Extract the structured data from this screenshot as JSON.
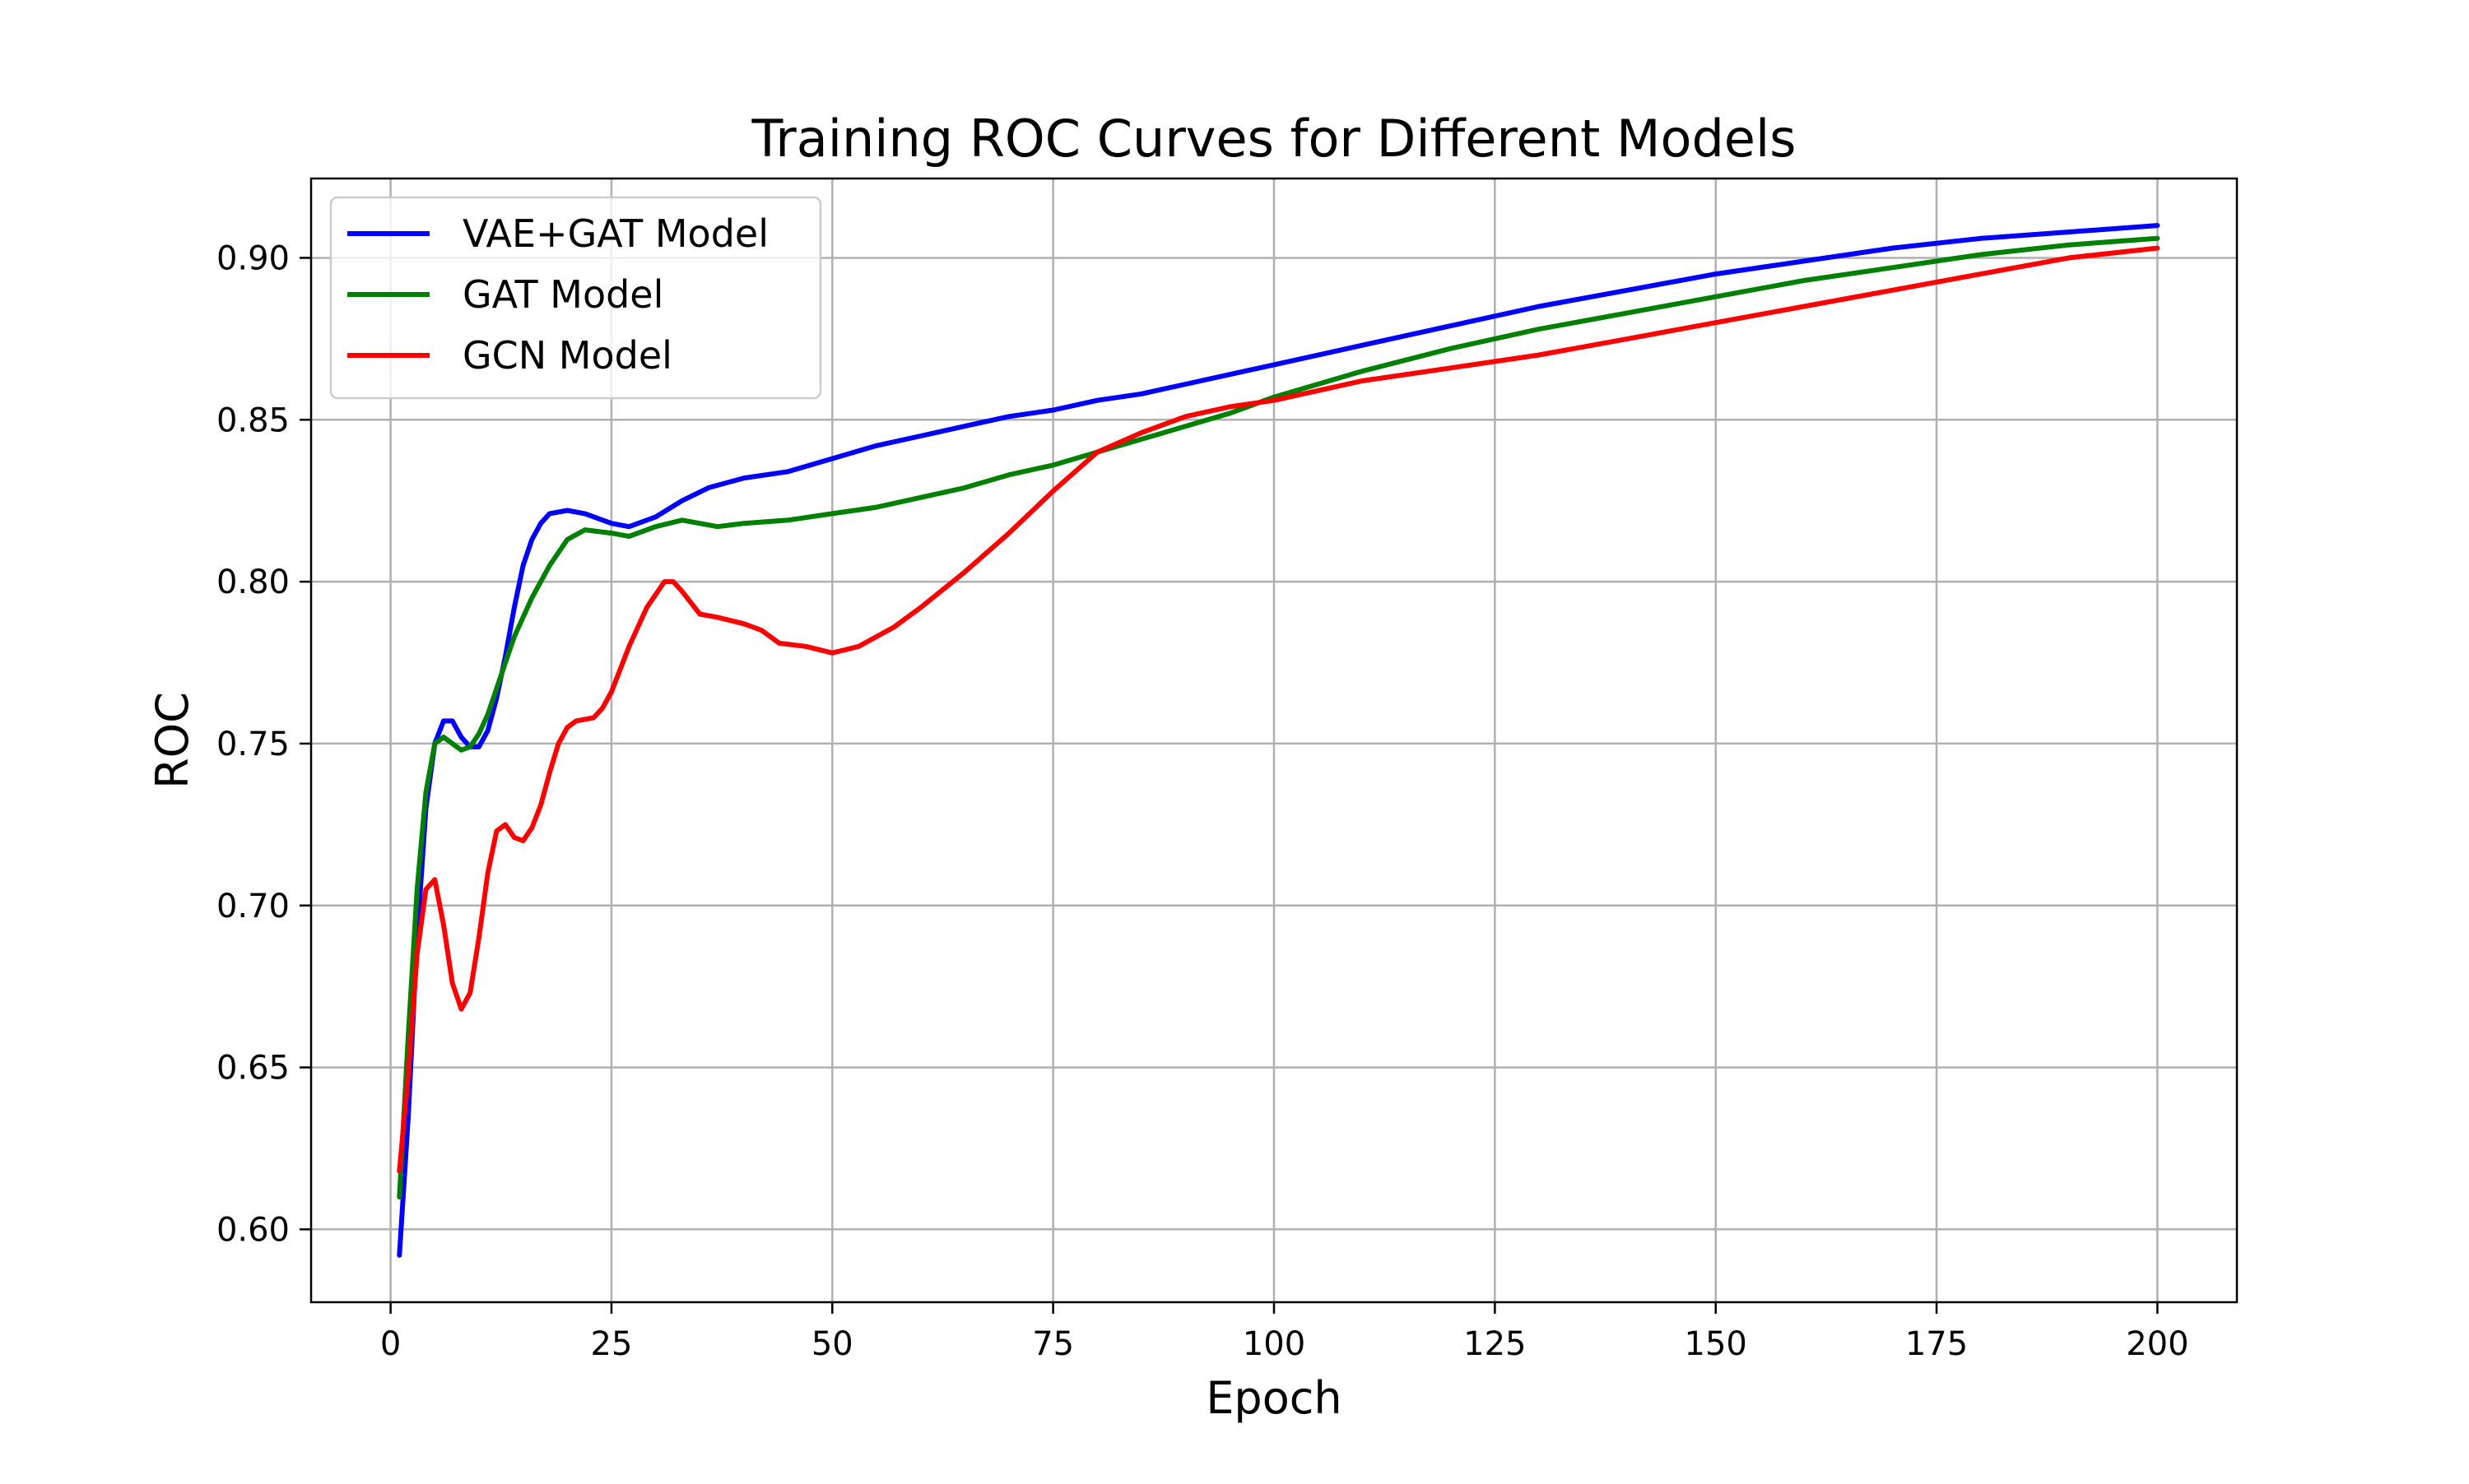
{
  "chart_data": {
    "type": "line",
    "title": "Training ROC Curves for Different Models",
    "xlabel": "Epoch",
    "ylabel": "ROC",
    "xlim": [
      -9,
      209
    ],
    "ylim": [
      0.5775,
      0.9245
    ],
    "grid": true,
    "legend_position": "top-left",
    "x_ticks": [
      0,
      25,
      50,
      75,
      100,
      125,
      150,
      175,
      200
    ],
    "y_ticks": [
      0.6,
      0.65,
      0.7,
      0.75,
      0.8,
      0.85,
      0.9
    ],
    "series": [
      {
        "name": "VAE+GAT Model",
        "color": "#0000ff",
        "points": [
          [
            1,
            0.592
          ],
          [
            2,
            0.635
          ],
          [
            3,
            0.69
          ],
          [
            4,
            0.73
          ],
          [
            5,
            0.75
          ],
          [
            6,
            0.757
          ],
          [
            7,
            0.757
          ],
          [
            8,
            0.752
          ],
          [
            9,
            0.749
          ],
          [
            10,
            0.749
          ],
          [
            11,
            0.754
          ],
          [
            12,
            0.764
          ],
          [
            13,
            0.777
          ],
          [
            14,
            0.792
          ],
          [
            15,
            0.805
          ],
          [
            16,
            0.813
          ],
          [
            17,
            0.818
          ],
          [
            18,
            0.821
          ],
          [
            20,
            0.822
          ],
          [
            22,
            0.821
          ],
          [
            25,
            0.818
          ],
          [
            27,
            0.817
          ],
          [
            30,
            0.82
          ],
          [
            33,
            0.825
          ],
          [
            36,
            0.829
          ],
          [
            40,
            0.832
          ],
          [
            45,
            0.834
          ],
          [
            50,
            0.838
          ],
          [
            55,
            0.842
          ],
          [
            60,
            0.845
          ],
          [
            65,
            0.848
          ],
          [
            70,
            0.851
          ],
          [
            75,
            0.853
          ],
          [
            80,
            0.856
          ],
          [
            85,
            0.858
          ],
          [
            90,
            0.861
          ],
          [
            95,
            0.864
          ],
          [
            100,
            0.867
          ],
          [
            110,
            0.873
          ],
          [
            120,
            0.879
          ],
          [
            130,
            0.885
          ],
          [
            140,
            0.89
          ],
          [
            150,
            0.895
          ],
          [
            160,
            0.899
          ],
          [
            170,
            0.903
          ],
          [
            180,
            0.906
          ],
          [
            190,
            0.908
          ],
          [
            200,
            0.91
          ]
        ]
      },
      {
        "name": "GAT Model",
        "color": "#008000",
        "points": [
          [
            1,
            0.61
          ],
          [
            2,
            0.66
          ],
          [
            3,
            0.705
          ],
          [
            4,
            0.735
          ],
          [
            5,
            0.75
          ],
          [
            6,
            0.752
          ],
          [
            7,
            0.75
          ],
          [
            8,
            0.748
          ],
          [
            9,
            0.749
          ],
          [
            10,
            0.753
          ],
          [
            11,
            0.759
          ],
          [
            12,
            0.767
          ],
          [
            13,
            0.775
          ],
          [
            14,
            0.783
          ],
          [
            16,
            0.795
          ],
          [
            18,
            0.805
          ],
          [
            20,
            0.813
          ],
          [
            22,
            0.816
          ],
          [
            25,
            0.815
          ],
          [
            27,
            0.814
          ],
          [
            30,
            0.817
          ],
          [
            33,
            0.819
          ],
          [
            37,
            0.817
          ],
          [
            40,
            0.818
          ],
          [
            45,
            0.819
          ],
          [
            50,
            0.821
          ],
          [
            55,
            0.823
          ],
          [
            60,
            0.826
          ],
          [
            65,
            0.829
          ],
          [
            70,
            0.833
          ],
          [
            75,
            0.836
          ],
          [
            80,
            0.84
          ],
          [
            85,
            0.844
          ],
          [
            90,
            0.848
          ],
          [
            95,
            0.852
          ],
          [
            100,
            0.857
          ],
          [
            110,
            0.865
          ],
          [
            120,
            0.872
          ],
          [
            130,
            0.878
          ],
          [
            140,
            0.883
          ],
          [
            150,
            0.888
          ],
          [
            160,
            0.893
          ],
          [
            170,
            0.897
          ],
          [
            180,
            0.901
          ],
          [
            190,
            0.904
          ],
          [
            200,
            0.906
          ]
        ]
      },
      {
        "name": "GCN Model",
        "color": "#ff0000",
        "points": [
          [
            1,
            0.618
          ],
          [
            2,
            0.648
          ],
          [
            3,
            0.685
          ],
          [
            4,
            0.705
          ],
          [
            5,
            0.708
          ],
          [
            6,
            0.694
          ],
          [
            7,
            0.676
          ],
          [
            8,
            0.668
          ],
          [
            9,
            0.673
          ],
          [
            10,
            0.69
          ],
          [
            11,
            0.71
          ],
          [
            12,
            0.723
          ],
          [
            13,
            0.725
          ],
          [
            14,
            0.721
          ],
          [
            15,
            0.72
          ],
          [
            16,
            0.724
          ],
          [
            17,
            0.731
          ],
          [
            18,
            0.741
          ],
          [
            19,
            0.75
          ],
          [
            20,
            0.755
          ],
          [
            21,
            0.757
          ],
          [
            23,
            0.758
          ],
          [
            24,
            0.761
          ],
          [
            25,
            0.766
          ],
          [
            27,
            0.78
          ],
          [
            29,
            0.792
          ],
          [
            31,
            0.8
          ],
          [
            32,
            0.8
          ],
          [
            33,
            0.797
          ],
          [
            35,
            0.79
          ],
          [
            37,
            0.789
          ],
          [
            40,
            0.787
          ],
          [
            42,
            0.785
          ],
          [
            44,
            0.781
          ],
          [
            47,
            0.78
          ],
          [
            50,
            0.778
          ],
          [
            53,
            0.78
          ],
          [
            57,
            0.786
          ],
          [
            60,
            0.792
          ],
          [
            65,
            0.803
          ],
          [
            70,
            0.815
          ],
          [
            75,
            0.828
          ],
          [
            80,
            0.84
          ],
          [
            85,
            0.846
          ],
          [
            90,
            0.851
          ],
          [
            95,
            0.854
          ],
          [
            100,
            0.856
          ],
          [
            110,
            0.862
          ],
          [
            120,
            0.866
          ],
          [
            130,
            0.87
          ],
          [
            140,
            0.875
          ],
          [
            150,
            0.88
          ],
          [
            160,
            0.885
          ],
          [
            170,
            0.89
          ],
          [
            180,
            0.895
          ],
          [
            190,
            0.9
          ],
          [
            200,
            0.903
          ]
        ]
      }
    ]
  }
}
